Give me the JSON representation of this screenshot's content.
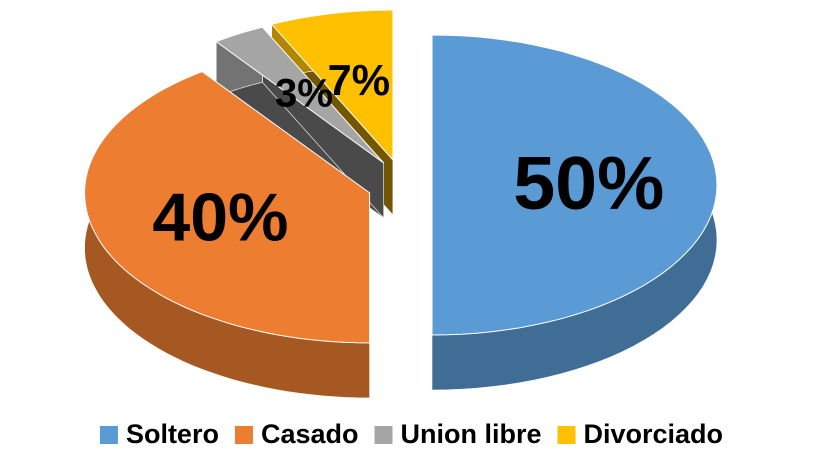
{
  "chart_data": {
    "type": "pie",
    "three_d": true,
    "categories": [
      "Soltero",
      "Casado",
      "Union libre",
      "Divorciado"
    ],
    "values": [
      50,
      40,
      3,
      7
    ],
    "value_labels": [
      "50%",
      "40%",
      "3%",
      "7%"
    ],
    "colors": [
      "#5b9bd5",
      "#ed7d31",
      "#a5a5a5",
      "#ffc000"
    ],
    "legend": "bottom"
  }
}
